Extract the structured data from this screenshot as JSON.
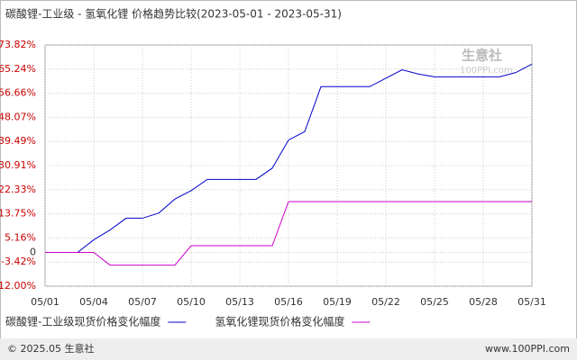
{
  "chart_data": {
    "type": "line",
    "title": "碳酸锂-工业级 - 氢氧化锂 价格趋势比较(2023-05-01 - 2023-05-31)",
    "categories": [
      "05/01",
      null,
      null,
      "05/04",
      null,
      null,
      "05/07",
      null,
      null,
      "05/10",
      null,
      null,
      "05/13",
      null,
      null,
      "05/16",
      null,
      null,
      "05/19",
      null,
      null,
      "05/22",
      null,
      null,
      "05/25",
      null,
      null,
      "05/28",
      null,
      null,
      "05/31"
    ],
    "series": [
      {
        "name": "碳酸锂-工业级现货价格变化幅度",
        "color": "#0000cc",
        "values": [
          0,
          0,
          0,
          4.5,
          8,
          12.2,
          12.2,
          14,
          19,
          22,
          26,
          26,
          26,
          26,
          30,
          40,
          43,
          59,
          59,
          59,
          59,
          62,
          65,
          63.5,
          62.5,
          62.5,
          62.5,
          62.5,
          62.5,
          64,
          67
        ]
      },
      {
        "name": "氢氧化锂现货价格变化幅度",
        "color": "#cc00cc",
        "values": [
          0,
          0,
          0,
          0,
          -4.5,
          -4.5,
          -4.5,
          -4.5,
          -4.5,
          2.4,
          2.4,
          2.4,
          2.4,
          2.4,
          2.4,
          18.1,
          18.1,
          18.1,
          18.1,
          18.1,
          18.1,
          18.1,
          18.1,
          18.1,
          18.1,
          18.1,
          18.1,
          18.1,
          18.1,
          18.1,
          18.1
        ]
      }
    ],
    "ylim": [
      -12,
      73.82
    ],
    "yticks": [
      {
        "value": 73.82,
        "label": "73.82%"
      },
      {
        "value": 65.24,
        "label": "65.24%"
      },
      {
        "value": 56.66,
        "label": "56.66%"
      },
      {
        "value": 48.07,
        "label": "48.07%"
      },
      {
        "value": 39.49,
        "label": "39.49%"
      },
      {
        "value": 30.91,
        "label": "30.91%"
      },
      {
        "value": 22.33,
        "label": "22.33%"
      },
      {
        "value": 13.75,
        "label": "13.75%"
      },
      {
        "value": 5.16,
        "label": "5.16%"
      },
      0,
      {
        "value": -3.42,
        "label": "-3.42%"
      },
      {
        "value": -12,
        "label": "-12.00%"
      }
    ],
    "grid": true,
    "watermark": [
      "生意社",
      "100PPI.com"
    ],
    "footer": {
      "left": "© 2025.05 生意社",
      "right": "www.100PPI.com"
    }
  }
}
